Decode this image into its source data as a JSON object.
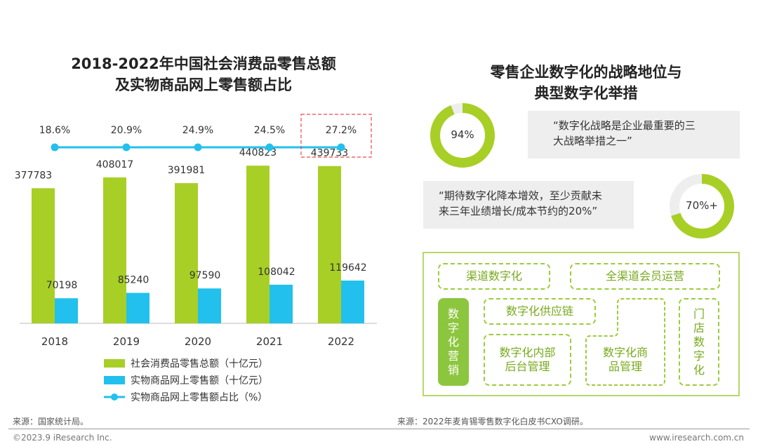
{
  "left_panel": {
    "title_line1": "2018-2022年中国社会消费品零售总额",
    "title_line2": "及实物商品网上零售额占比",
    "source": "来源：国家统计局。"
  },
  "chart_data": {
    "type": "bar",
    "title": "2018-2022年中国社会消费品零售总额及实物商品网上零售额占比",
    "categories": [
      "2018",
      "2019",
      "2020",
      "2021",
      "2022"
    ],
    "series": [
      {
        "name": "社会消费品零售总额（十亿元）",
        "type": "bar",
        "color": "#a8cf26",
        "values": [
          377783,
          408017,
          391981,
          440823,
          439733
        ]
      },
      {
        "name": "实物商品网上零售额（十亿元）",
        "type": "bar",
        "color": "#22c0ec",
        "values": [
          70198,
          85240,
          97590,
          108042,
          119642
        ]
      },
      {
        "name": "实物商品网上零售额占比（%）",
        "type": "line",
        "color": "#22c0ec",
        "values": [
          18.6,
          20.9,
          24.9,
          24.5,
          27.2
        ],
        "labels": [
          "18.6%",
          "20.9%",
          "24.9%",
          "24.5%",
          "27.2%"
        ]
      }
    ],
    "highlight_category": "2022",
    "legend_position": "bottom"
  },
  "right_panel": {
    "title_line1": "零售企业数字化的战略地位与",
    "title_line2": "典型数字化举措",
    "donut1": {
      "value": 94,
      "label": "94%",
      "color": "#a8cf26",
      "track": "#eeeeee"
    },
    "quote1_line1": "“数字化战略是企业最重要的三",
    "quote1_line2": "大战略举措之一”",
    "donut2": {
      "value": 70,
      "label": "70%+",
      "color": "#a8cf26",
      "track": "#eeeeee"
    },
    "quote2_line1": "“期待数字化降本增效，至少贡献未",
    "quote2_line2": "来三年业绩增长/成本节约的20%”",
    "tags": {
      "channel": "渠道数字化",
      "omni_member": "全渠道会员运营",
      "marketing": [
        "数",
        "字",
        "化",
        "营",
        "销"
      ],
      "supply_chain": "数字化供应链",
      "internal_1": "数字化内部",
      "internal_2": "后台管理",
      "goods_1": "数字化商",
      "goods_2": "品管理",
      "store": [
        "门",
        "店",
        "数",
        "字",
        "化"
      ]
    },
    "source": "来源：2022年麦肯锡零售数字化白皮书CXO调研。"
  },
  "footer": {
    "copyright": "©2023.9 iResearch Inc.",
    "website": "www.iresearch.com.cn"
  }
}
